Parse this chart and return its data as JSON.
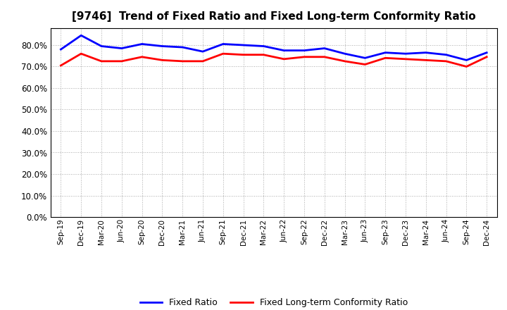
{
  "title": "[9746]  Trend of Fixed Ratio and Fixed Long-term Conformity Ratio",
  "x_labels": [
    "Sep-19",
    "Dec-19",
    "Mar-20",
    "Jun-20",
    "Sep-20",
    "Dec-20",
    "Mar-21",
    "Jun-21",
    "Sep-21",
    "Dec-21",
    "Mar-22",
    "Jun-22",
    "Sep-22",
    "Dec-22",
    "Mar-23",
    "Jun-23",
    "Sep-23",
    "Dec-23",
    "Mar-24",
    "Jun-24",
    "Sep-24",
    "Dec-24"
  ],
  "fixed_ratio": [
    78.0,
    84.5,
    79.5,
    78.5,
    80.5,
    79.5,
    79.0,
    77.0,
    80.5,
    80.0,
    79.5,
    77.5,
    77.5,
    78.5,
    76.0,
    74.0,
    76.5,
    76.0,
    76.5,
    75.5,
    73.0,
    76.5
  ],
  "fixed_lt_ratio": [
    70.5,
    76.0,
    72.5,
    72.5,
    74.5,
    73.0,
    72.5,
    72.5,
    76.0,
    75.5,
    75.5,
    73.5,
    74.5,
    74.5,
    72.5,
    71.0,
    74.0,
    73.5,
    73.0,
    72.5,
    70.0,
    74.5
  ],
  "fixed_ratio_color": "#0000FF",
  "fixed_lt_ratio_color": "#FF0000",
  "ylim": [
    0,
    88
  ],
  "yticks": [
    0.0,
    10.0,
    20.0,
    30.0,
    40.0,
    50.0,
    60.0,
    70.0,
    80.0
  ],
  "background_color": "#FFFFFF",
  "plot_bg_color": "#FFFFFF",
  "grid_color": "#AAAAAA",
  "legend_fixed_ratio": "Fixed Ratio",
  "legend_fixed_lt_ratio": "Fixed Long-term Conformity Ratio"
}
